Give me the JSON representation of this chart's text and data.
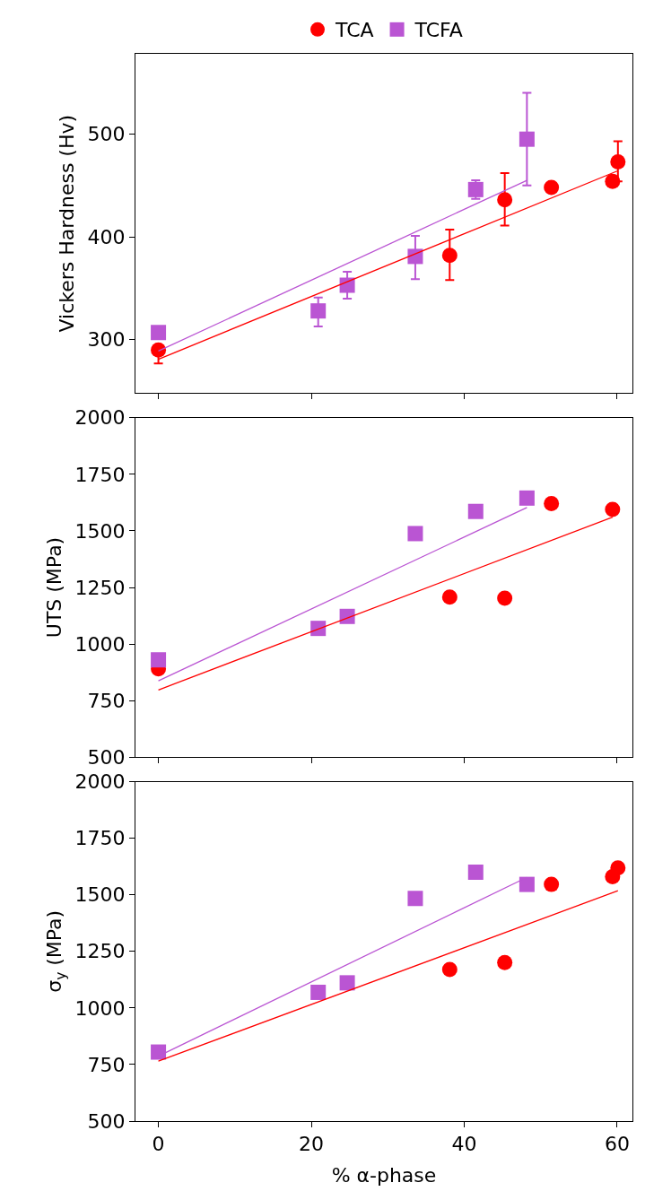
{
  "chart_data": [
    {
      "type": "scatter",
      "ylabel": "Vickers Hardness (Hv)",
      "xlim": [
        -3,
        62
      ],
      "xticks": [
        0,
        20,
        40,
        60
      ],
      "ylim": [
        248,
        578
      ],
      "yticks": [
        300,
        400,
        500
      ],
      "tick_labels": "y",
      "legend": "top",
      "series": [
        {
          "name": "TCA",
          "color": "#ff0000",
          "marker": "circle",
          "x": [
            0,
            38.1,
            45.3,
            51.4,
            59.4,
            60.1
          ],
          "values": [
            290,
            382,
            436,
            448,
            454,
            473
          ],
          "errors": [
            [
              277,
              290
            ],
            [
              358,
              407
            ],
            [
              411,
              462
            ],
            null,
            [
              449,
              459
            ],
            [
              454,
              493
            ]
          ]
        },
        {
          "name": "TCFA",
          "color": "#ba55d3",
          "marker": "square",
          "x": [
            0,
            20.9,
            24.7,
            33.6,
            41.5,
            48.2
          ],
          "values": [
            307,
            328,
            353,
            381,
            446,
            495
          ],
          "errors": [
            null,
            [
              313,
              341
            ],
            [
              340,
              366
            ],
            [
              359,
              401
            ],
            [
              437,
              455
            ],
            [
              450,
              540
            ]
          ]
        },
        {
          "type": "line",
          "color": "#ff0000",
          "marker": "none",
          "line_style": "solid",
          "x": [
            0,
            60
          ],
          "values": [
            281,
            464
          ]
        },
        {
          "type": "line",
          "color": "#ba55d3",
          "marker": "none",
          "line_style": "solid",
          "x": [
            0,
            48.2
          ],
          "values": [
            289,
            455
          ]
        }
      ]
    },
    {
      "type": "scatter",
      "ylabel": "UTS (MPa)",
      "xlim": [
        -3,
        62
      ],
      "xticks": [
        0,
        20,
        40,
        60
      ],
      "ylim": [
        500,
        2000
      ],
      "yticks": [
        500,
        750,
        1000,
        1250,
        1500,
        1750,
        2000
      ],
      "tick_labels": "y",
      "series": [
        {
          "name": "TCA",
          "color": "#ff0000",
          "marker": "circle",
          "x": [
            0,
            38.1,
            45.3,
            51.4,
            59.4
          ],
          "values": [
            890,
            1207,
            1202,
            1621,
            1595
          ]
        },
        {
          "name": "TCFA",
          "color": "#ba55d3",
          "marker": "square",
          "x": [
            0,
            20.9,
            24.7,
            33.6,
            41.5,
            48.2
          ],
          "values": [
            930,
            1069,
            1122,
            1488,
            1586,
            1645
          ]
        },
        {
          "type": "line",
          "color": "#ff0000",
          "marker": "none",
          "line_style": "solid",
          "x": [
            0,
            59.4
          ],
          "values": [
            797,
            1561
          ]
        },
        {
          "type": "line",
          "color": "#ba55d3",
          "marker": "none",
          "line_style": "solid",
          "x": [
            0,
            48.2
          ],
          "values": [
            837,
            1603
          ]
        }
      ]
    },
    {
      "type": "scatter",
      "ylabel": "σ$_{y}$ (MPa)",
      "xlabel": "% α-phase",
      "xlim": [
        -3,
        62
      ],
      "xticks": [
        0,
        20,
        40,
        60
      ],
      "ylim": [
        500,
        2000
      ],
      "yticks": [
        500,
        750,
        1000,
        1250,
        1500,
        1750,
        2000
      ],
      "series": [
        {
          "name": "TCA",
          "color": "#ff0000",
          "marker": "circle",
          "x": [
            38.1,
            45.3,
            51.4,
            59.4,
            60.1
          ],
          "values": [
            1170,
            1201,
            1546,
            1580,
            1619
          ]
        },
        {
          "name": "TCFA",
          "color": "#ba55d3",
          "marker": "square",
          "x": [
            0,
            20.9,
            24.7,
            33.6,
            41.5,
            48.2
          ],
          "values": [
            805,
            1069,
            1111,
            1484,
            1600,
            1546
          ]
        },
        {
          "type": "line",
          "color": "#ff0000",
          "marker": "none",
          "line_style": "solid",
          "x": [
            0,
            60.1
          ],
          "values": [
            765,
            1518
          ]
        },
        {
          "type": "line",
          "color": "#ba55d3",
          "marker": "none",
          "line_style": "solid",
          "x": [
            0,
            48.2
          ],
          "values": [
            787,
            1577
          ]
        }
      ]
    }
  ]
}
